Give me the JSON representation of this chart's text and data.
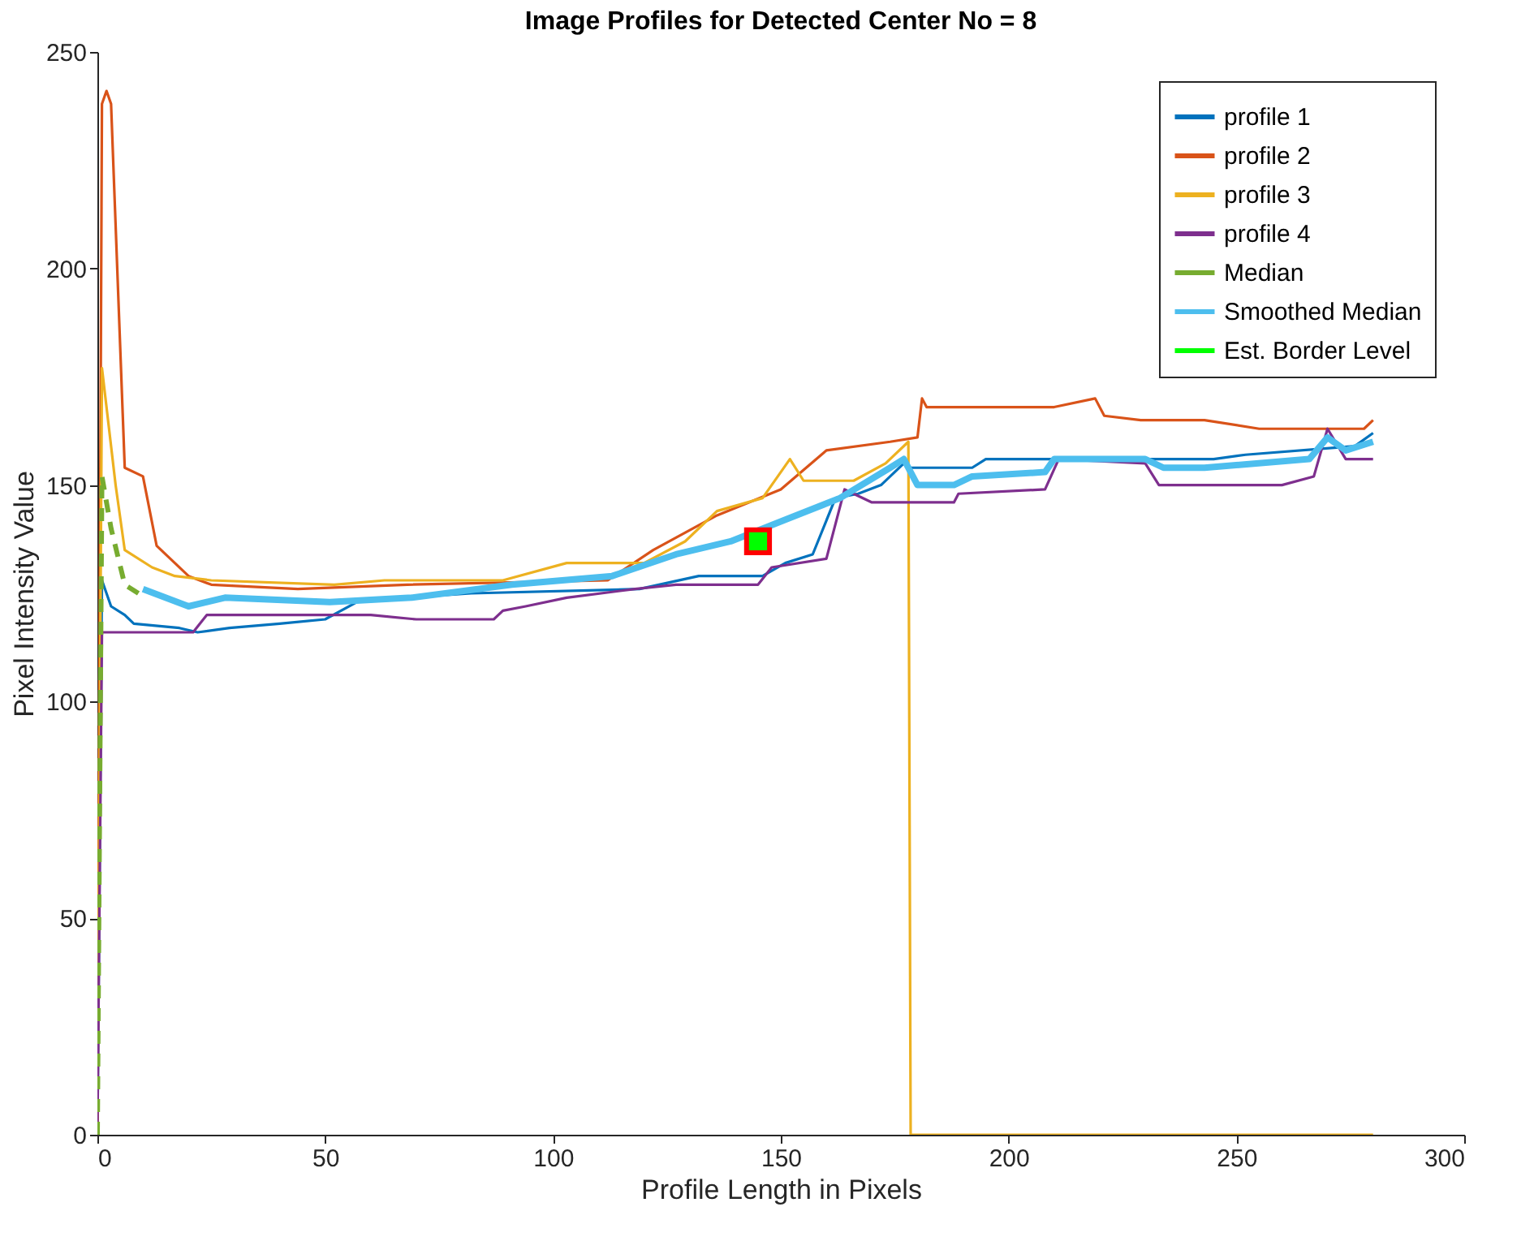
{
  "chart_data": {
    "type": "line",
    "title": "Image Profiles for Detected Center No = 8",
    "xlabel": "Profile Length in Pixels",
    "ylabel": "Pixel Intensity Value",
    "xlim": [
      0,
      300
    ],
    "xticks": [
      0,
      50,
      100,
      150,
      200,
      250,
      300
    ],
    "ylim": [
      0,
      250
    ],
    "yticks": [
      0,
      50,
      100,
      150,
      200,
      250
    ],
    "grid": false,
    "legend": "top right",
    "series": [
      {
        "name": "profile 1",
        "color": "#0072bd",
        "line_style": "solid",
        "x": [
          0,
          1,
          3,
          6,
          8,
          18,
          22,
          29,
          40,
          50,
          57,
          68,
          82,
          119,
          132,
          146,
          151,
          157,
          162,
          167,
          172,
          177,
          178,
          192,
          195,
          245,
          252,
          276,
          280
        ],
        "values": [
          0,
          128,
          122,
          120,
          118,
          117,
          116,
          117,
          118,
          119,
          123,
          124,
          125,
          126,
          129,
          129,
          132,
          134,
          147,
          148,
          150,
          155,
          154,
          154,
          156,
          156,
          157,
          159,
          162
        ]
      },
      {
        "name": "profile 2",
        "color": "#d95319",
        "line_style": "solid",
        "x": [
          0,
          1,
          2,
          3,
          6,
          10,
          13,
          20,
          25,
          44,
          68,
          112,
          122,
          136,
          150,
          160,
          174,
          180,
          181,
          182,
          210,
          219,
          221,
          229,
          243,
          255,
          278,
          280
        ],
        "values": [
          0,
          238,
          241,
          238,
          154,
          152,
          136,
          129,
          127,
          126,
          127,
          128,
          135,
          143,
          149,
          158,
          160,
          161,
          170,
          168,
          168,
          170,
          166,
          165,
          165,
          163,
          163,
          165
        ]
      },
      {
        "name": "profile 3",
        "color": "#edb120",
        "line_style": "solid",
        "x": [
          0,
          1,
          4,
          6,
          12,
          17,
          25,
          52,
          63,
          89,
          103,
          120,
          129,
          136,
          146,
          152,
          155,
          166,
          173,
          178,
          178.5,
          280
        ],
        "values": [
          0,
          177,
          150,
          135,
          131,
          129,
          128,
          127,
          128,
          128,
          132,
          132,
          137,
          144,
          147,
          156,
          151,
          151,
          155,
          160,
          0,
          0
        ]
      },
      {
        "name": "profile 4",
        "color": "#7e2f8e",
        "line_style": "solid",
        "x": [
          0,
          1,
          21,
          24,
          30,
          60,
          70,
          87,
          89,
          94,
          103,
          118,
          127,
          145,
          148,
          160,
          164,
          170,
          188,
          189,
          208,
          211,
          230,
          233,
          260,
          267,
          270,
          274,
          280
        ],
        "values": [
          0,
          116,
          116,
          120,
          120,
          120,
          119,
          119,
          121,
          122,
          124,
          126,
          127,
          127,
          131,
          133,
          149,
          146,
          146,
          148,
          149,
          156,
          155,
          150,
          150,
          152,
          163,
          156,
          156
        ]
      },
      {
        "name": "Median",
        "color": "#77ac30",
        "line_style": "dashed",
        "x": [
          0,
          1,
          3,
          6,
          9
        ],
        "values": [
          0,
          152,
          140,
          127,
          125
        ]
      },
      {
        "name": "Smoothed Median",
        "color": "#4dbeee",
        "line_style": "solid",
        "x": [
          10,
          20,
          28,
          51,
          69,
          91,
          113,
          127,
          139,
          151,
          163,
          174,
          177,
          180,
          188,
          192,
          208,
          210,
          230,
          234,
          243,
          266,
          270,
          274,
          280
        ],
        "values": [
          126,
          122,
          124,
          123,
          124,
          127,
          129,
          134,
          137,
          142,
          147,
          154,
          156,
          150,
          150,
          152,
          153,
          156,
          156,
          154,
          154,
          156,
          161,
          158,
          160
        ]
      },
      {
        "name": "Est. Border Level",
        "type": "scatter",
        "marker": "square",
        "color": "#00ff00",
        "x": [
          145
        ],
        "values": [
          137
        ]
      }
    ]
  }
}
